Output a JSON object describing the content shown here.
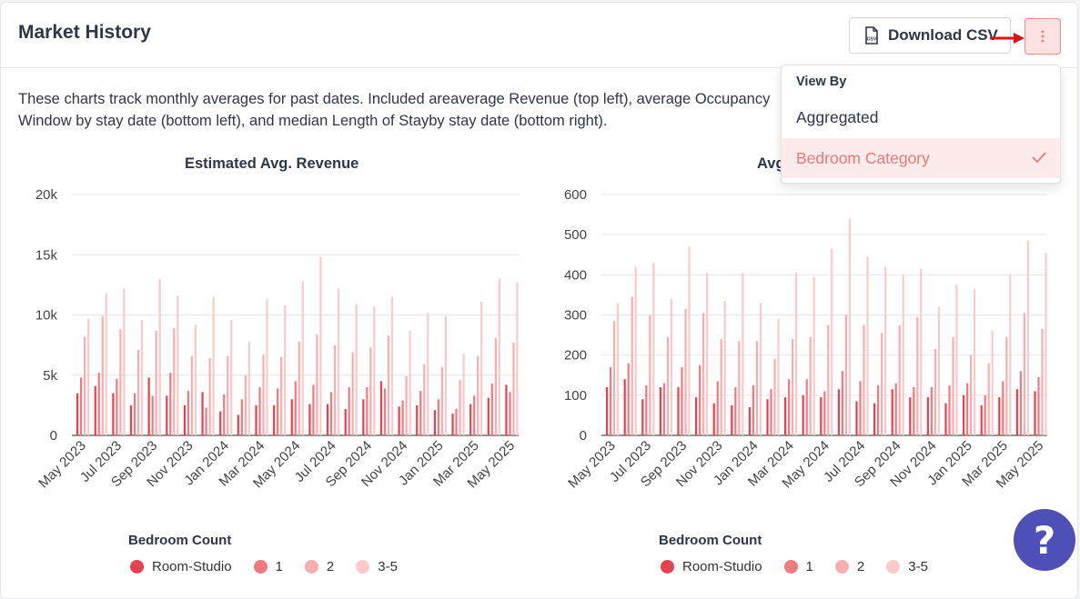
{
  "header": {
    "title": "Market History",
    "download_label": "Download CSV"
  },
  "description": "These charts track monthly averages for past dates. Included areaverage Revenue (top left), average Occupancy Window by stay date (bottom left), and median Length of Stayby stay date (bottom right).",
  "dropdown": {
    "heading": "View By",
    "options": [
      "Aggregated",
      "Bedroom Category"
    ],
    "selected": "Bedroom Category"
  },
  "legend": {
    "title": "Bedroom Count",
    "items": [
      "Room-Studio",
      "1",
      "2",
      "3-5"
    ]
  },
  "colors": {
    "series": [
      "#e8414e",
      "#f07a80",
      "#f8aeb0",
      "#fbcac9"
    ],
    "accent": "#f28b8b",
    "help": "#4f4fb8"
  },
  "icons": {
    "csv": "csv-file-icon",
    "menu": "kebab-menu-icon",
    "check": "check-icon",
    "help": "question-mark-icon"
  },
  "chart_data": [
    {
      "type": "bar",
      "title": "Estimated Avg. Revenue",
      "categories": [
        "May 2023",
        "Jun 2023",
        "Jul 2023",
        "Aug 2023",
        "Sep 2023",
        "Oct 2023",
        "Nov 2023",
        "Dec 2023",
        "Jan 2024",
        "Feb 2024",
        "Mar 2024",
        "Apr 2024",
        "May 2024",
        "Jun 2024",
        "Jul 2024",
        "Aug 2024",
        "Sep 2024",
        "Oct 2024",
        "Nov 2024",
        "Dec 2024",
        "Jan 2025",
        "Feb 2025",
        "Mar 2025",
        "Apr 2025",
        "May 2025"
      ],
      "tick_labels": [
        "May 2023",
        "Jul 2023",
        "Sep 2023",
        "Nov 2023",
        "Jan 2024",
        "Mar 2024",
        "May 2024",
        "Jul 2024",
        "Sep 2024",
        "Nov 2024",
        "Jan 2025",
        "Mar 2025",
        "May 2025"
      ],
      "yticks": [
        0,
        5000,
        10000,
        15000,
        20000
      ],
      "ytick_labels": [
        "0",
        "5k",
        "10k",
        "15k",
        "20k"
      ],
      "ylim": [
        0,
        20000
      ],
      "series": [
        {
          "name": "Room-Studio",
          "values": [
            3500,
            4100,
            3500,
            2500,
            4800,
            3300,
            2500,
            3600,
            2000,
            1700,
            2500,
            2500,
            3000,
            2600,
            2600,
            2200,
            3000,
            4500,
            2400,
            2500,
            2100,
            1800,
            2600,
            3100,
            4200
          ]
        },
        {
          "name": "1",
          "values": [
            4800,
            5200,
            4700,
            3500,
            3300,
            5200,
            3700,
            2300,
            3400,
            3000,
            4000,
            3900,
            4500,
            4200,
            3600,
            4000,
            4000,
            3900,
            2900,
            3700,
            3000,
            2200,
            3300,
            4300,
            3600
          ]
        },
        {
          "name": "2",
          "values": [
            8200,
            9900,
            8800,
            7100,
            8700,
            8900,
            6600,
            6400,
            6600,
            5000,
            6700,
            6500,
            7800,
            8400,
            7500,
            6900,
            7300,
            8300,
            4900,
            5900,
            5700,
            4600,
            6600,
            8100,
            7700
          ]
        },
        {
          "name": "3-5",
          "values": [
            9700,
            11800,
            12200,
            9600,
            13000,
            11600,
            9200,
            11500,
            9600,
            7800,
            11300,
            10800,
            12800,
            14800,
            12200,
            10900,
            10700,
            11500,
            8700,
            10200,
            9900,
            6800,
            11100,
            13000,
            12700
          ]
        }
      ]
    },
    {
      "type": "bar",
      "title": "Avg",
      "categories": [
        "May 2023",
        "Jun 2023",
        "Jul 2023",
        "Aug 2023",
        "Sep 2023",
        "Oct 2023",
        "Nov 2023",
        "Dec 2023",
        "Jan 2024",
        "Feb 2024",
        "Mar 2024",
        "Apr 2024",
        "May 2024",
        "Jun 2024",
        "Jul 2024",
        "Aug 2024",
        "Sep 2024",
        "Oct 2024",
        "Nov 2024",
        "Dec 2024",
        "Jan 2025",
        "Feb 2025",
        "Mar 2025",
        "Apr 2025",
        "May 2025"
      ],
      "tick_labels": [
        "May 2023",
        "Jul 2023",
        "Sep 2023",
        "Nov 2023",
        "Jan 2024",
        "Mar 2024",
        "May 2024",
        "Jul 2024",
        "Sep 2024",
        "Nov 2024",
        "Jan 2025",
        "Mar 2025",
        "May 2025"
      ],
      "yticks": [
        0,
        100,
        200,
        300,
        400,
        500,
        600
      ],
      "ytick_labels": [
        "0",
        "100",
        "200",
        "300",
        "400",
        "500",
        "600"
      ],
      "ylim": [
        0,
        600
      ],
      "series": [
        {
          "name": "Room-Studio",
          "values": [
            120,
            140,
            90,
            120,
            120,
            95,
            80,
            75,
            70,
            90,
            95,
            100,
            95,
            115,
            85,
            80,
            115,
            95,
            95,
            80,
            100,
            75,
            95,
            115,
            110
          ]
        },
        {
          "name": "1",
          "values": [
            170,
            180,
            125,
            130,
            170,
            175,
            135,
            120,
            125,
            115,
            140,
            140,
            110,
            160,
            135,
            125,
            130,
            120,
            120,
            125,
            130,
            100,
            135,
            160,
            145
          ]
        },
        {
          "name": "2",
          "values": [
            285,
            345,
            300,
            245,
            315,
            305,
            240,
            235,
            235,
            190,
            240,
            245,
            275,
            300,
            275,
            255,
            275,
            295,
            215,
            245,
            200,
            180,
            245,
            305,
            265
          ]
        },
        {
          "name": "3-5",
          "values": [
            330,
            420,
            430,
            340,
            470,
            405,
            335,
            405,
            330,
            290,
            405,
            395,
            465,
            540,
            445,
            420,
            400,
            415,
            320,
            375,
            365,
            260,
            400,
            485,
            455
          ]
        }
      ]
    }
  ]
}
